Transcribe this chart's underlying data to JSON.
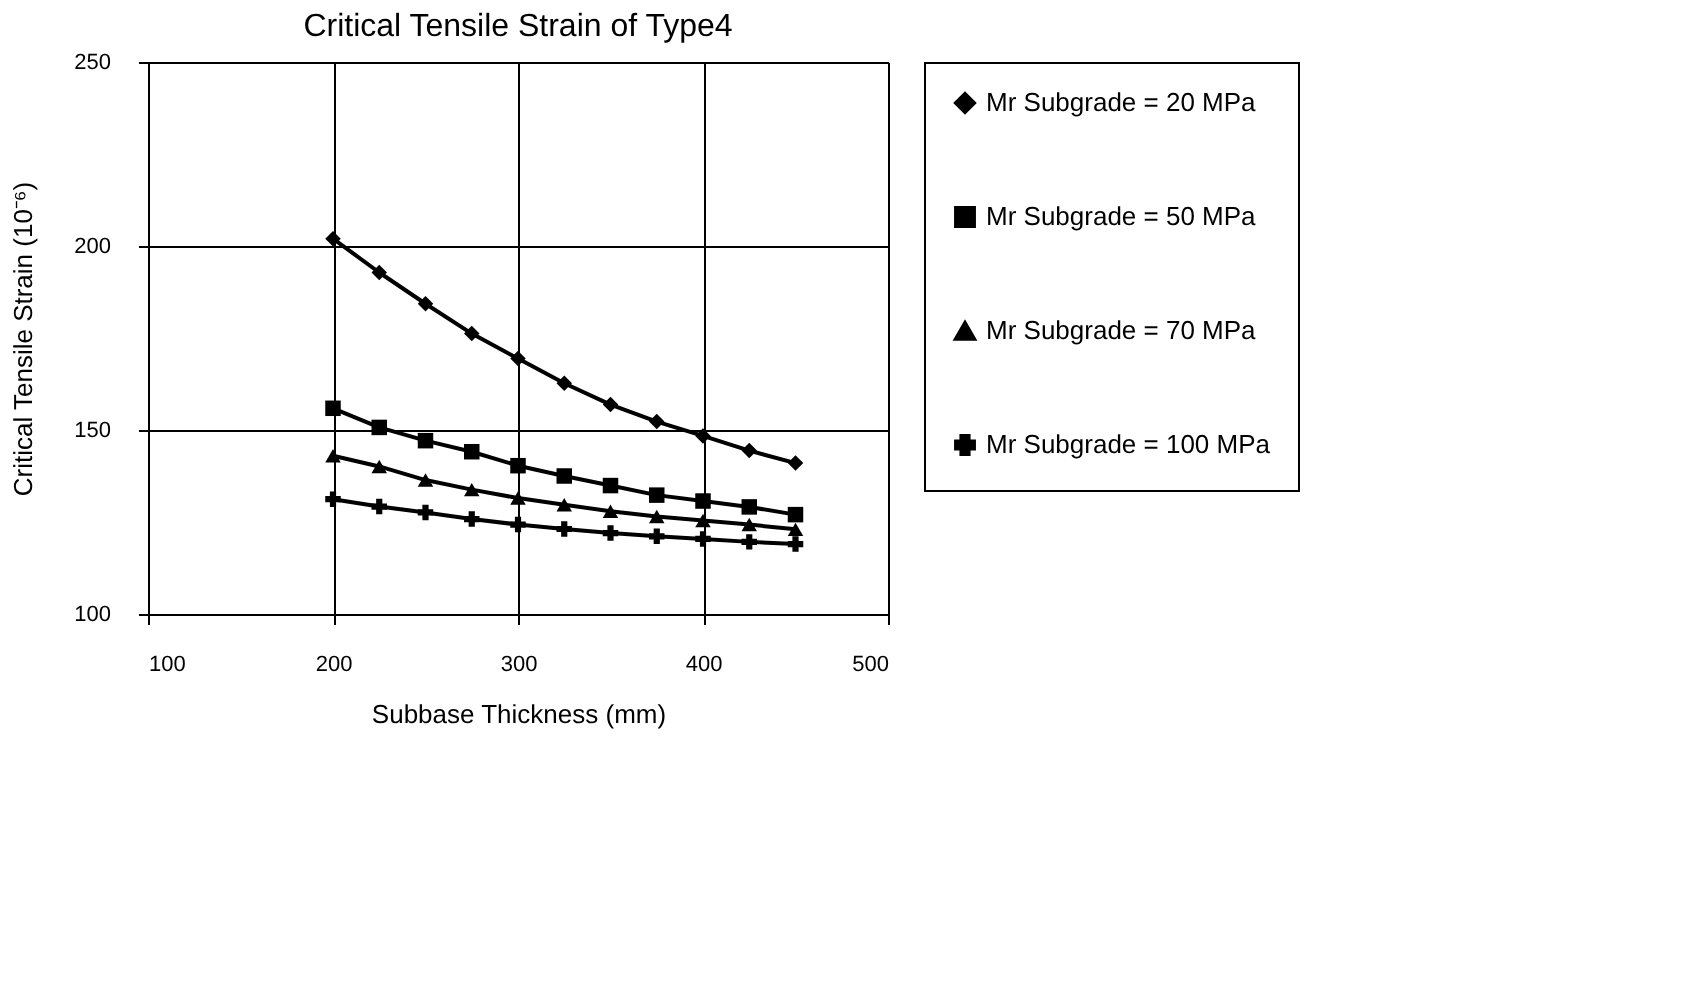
{
  "chart_data": {
    "type": "line",
    "title": "Critical Tensile Strain of Type4",
    "xlabel": "Subbase Thickness (mm)",
    "ylabel": "Critical Tensile Strain (10⁻⁶)",
    "x": [
      200,
      225,
      250,
      275,
      300,
      325,
      350,
      375,
      400,
      425,
      450
    ],
    "series": [
      {
        "name": "Mr Subgrade = 20 MPa",
        "color": "#000000",
        "marker": "diamond",
        "values": [
          202,
          192.8,
          184.3,
          176.2,
          169.4,
          162.7,
          156.9,
          152.3,
          148.4,
          144.4,
          141
        ]
      },
      {
        "name": "Mr Subgrade = 50 MPa",
        "color": "#000000",
        "marker": "square",
        "values": [
          155.9,
          150.7,
          147.1,
          144.1,
          140.3,
          137.5,
          134.9,
          132.3,
          130.7,
          129.1,
          127
        ]
      },
      {
        "name": "Mr Subgrade = 70 MPa",
        "color": "#000000",
        "marker": "triangle",
        "values": [
          143,
          140.1,
          136.4,
          133.8,
          131.5,
          129.7,
          127.9,
          126.5,
          125.4,
          124.3,
          123
        ]
      },
      {
        "name": "Mr Subgrade = 100 MPa",
        "color": "#000000",
        "marker": "cross",
        "values": [
          131.2,
          129.2,
          127.6,
          125.8,
          124.3,
          123.1,
          122,
          121.1,
          120.4,
          119.6,
          119
        ]
      }
    ],
    "xlim": [
      100,
      500
    ],
    "xticks": [
      100,
      200,
      300,
      400,
      500
    ],
    "ylim": [
      100,
      250
    ],
    "yticks": [
      100,
      150,
      200,
      250
    ],
    "grid": true,
    "legend": "right"
  }
}
